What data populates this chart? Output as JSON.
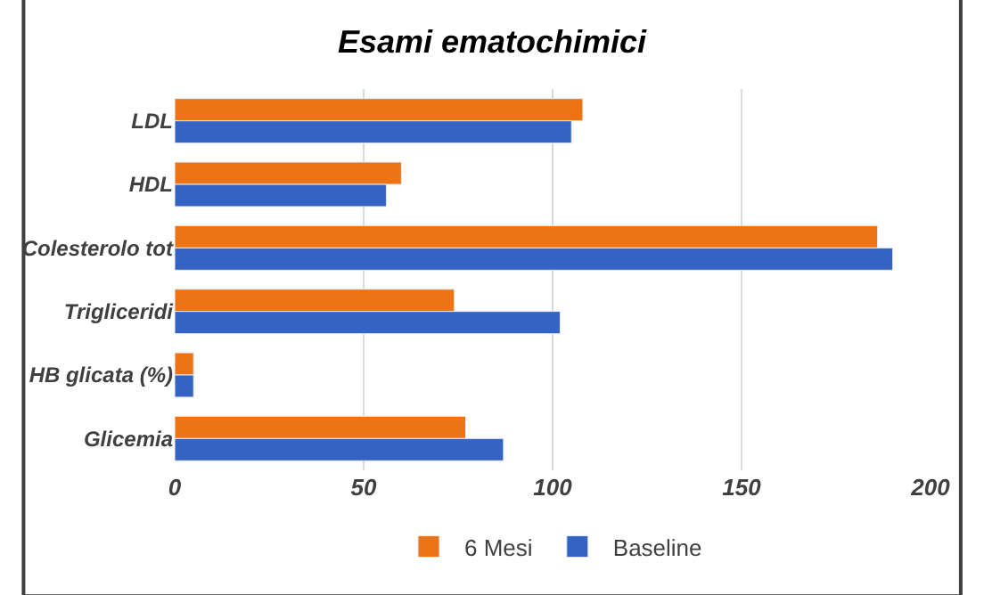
{
  "chart_data": {
    "type": "bar",
    "orientation": "horizontal",
    "title": "Esami ematochimici",
    "categories": [
      "LDL",
      "HDL",
      "Colesterolo tot",
      "Trigliceridi",
      "HB glicata (%)",
      "Glicemia"
    ],
    "series": [
      {
        "name": "6 Mesi",
        "color": "#ed7314",
        "values": [
          108,
          60,
          186,
          74,
          5,
          77
        ]
      },
      {
        "name": "Baseline",
        "color": "#3563c4",
        "values": [
          105,
          56,
          190,
          102,
          5,
          87
        ]
      }
    ],
    "xlim": [
      0,
      200
    ],
    "xticks": [
      0,
      50,
      100,
      150,
      200
    ],
    "grid": "x",
    "legend": "bottom"
  }
}
